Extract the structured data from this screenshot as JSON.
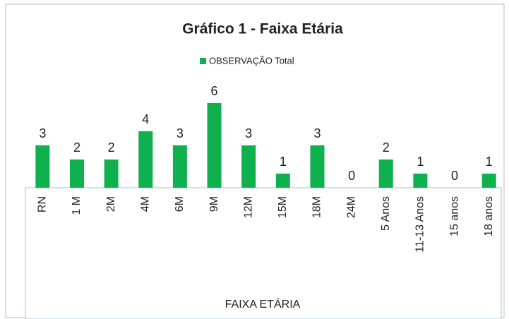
{
  "chart_data": {
    "type": "bar",
    "title": "Gráfico 1 - Faixa Etária",
    "legend": "OBSERVAÇÃO Total",
    "x_label": "FAIXA ETÁRIA",
    "categories": [
      "RN",
      "1 M",
      "2M",
      "4M",
      "6M",
      "9M",
      "12M",
      "15M",
      "18M",
      "24M",
      "5 Anos",
      "11-13 Anos",
      "15 anos",
      "18 anos"
    ],
    "values": [
      3,
      2,
      2,
      4,
      3,
      6,
      3,
      1,
      3,
      0,
      2,
      1,
      0,
      1
    ],
    "color": "#0fb04e"
  }
}
